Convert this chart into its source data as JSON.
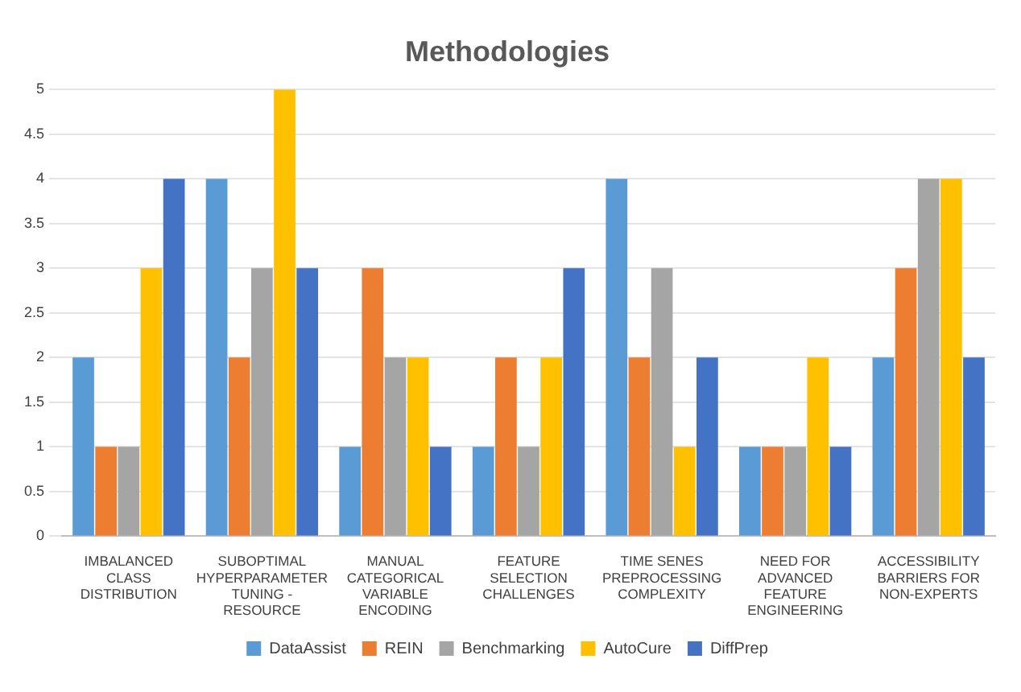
{
  "chart_data": {
    "type": "bar",
    "title": "Methodologies",
    "categories": [
      "IMBALANCED CLASS DISTRIBUTION",
      "SUBOPTIMAL HYPERPARAMETER TUNING - RESOURCE",
      "MANUAL CATEGORICAL VARIABLE ENCODING",
      "FEATURE SELECTION CHALLENGES",
      "TIME SENES PREPROCESSING COMPLEXITY",
      "NEED FOR ADVANCED FEATURE ENGINEERING",
      "ACCESSIBILITY BARRIERS FOR NON-EXPERTS"
    ],
    "series": [
      {
        "name": "DataAssist",
        "color": "#5b9bd5",
        "values": [
          2,
          4,
          1,
          1,
          4,
          1,
          2
        ]
      },
      {
        "name": "REIN",
        "color": "#ed7d31",
        "values": [
          1,
          2,
          3,
          2,
          2,
          1,
          3
        ]
      },
      {
        "name": "Benchmarking",
        "color": "#a5a5a5",
        "values": [
          1,
          3,
          2,
          1,
          3,
          1,
          4
        ]
      },
      {
        "name": "AutoCure",
        "color": "#ffc000",
        "values": [
          3,
          5,
          2,
          2,
          1,
          2,
          4
        ]
      },
      {
        "name": "DiffPrep",
        "color": "#4472c4",
        "values": [
          4,
          3,
          1,
          3,
          2,
          1,
          2
        ]
      }
    ],
    "ylim": [
      0,
      5
    ],
    "yticks": [
      0,
      0.5,
      1,
      1.5,
      2,
      2.5,
      3,
      3.5,
      4,
      4.5,
      5
    ],
    "grid": "y",
    "legend": "bottom"
  }
}
